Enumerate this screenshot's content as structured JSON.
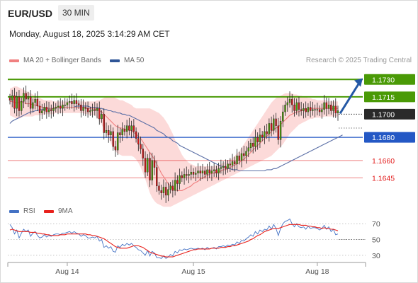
{
  "header": {
    "symbol": "EUR/USD",
    "timeframe": "30 MIN",
    "datetime": "Monday, August 18, 2025 3:14:29 AM CET",
    "credit": "Research © 2025 Trading Central"
  },
  "legend": {
    "ma20": {
      "label": "MA 20 + Bollinger Bands",
      "color": "#f08080"
    },
    "ma50": {
      "label": "MA 50",
      "color": "#2f5597"
    },
    "rsi": {
      "label": "RSI",
      "color": "#4472c4"
    },
    "rsi_ma": {
      "label": "9MA",
      "color": "#e8211c"
    }
  },
  "chart_data": [
    {
      "type": "candlestick",
      "title": "EUR/USD 30 MIN",
      "x_ticks": [
        "Aug 14",
        "Aug 15",
        "Aug 18"
      ],
      "ylim": [
        1.1622,
        1.1743
      ],
      "levels": [
        {
          "value": 1.173,
          "label": "1.1730",
          "kind": "resistance",
          "color": "#4a9a06"
        },
        {
          "value": 1.1715,
          "label": "1.1715",
          "kind": "resistance",
          "color": "#4a9a06"
        },
        {
          "value": 1.17,
          "label": "1.1700",
          "kind": "last",
          "color": "#2a2a2a"
        },
        {
          "value": 1.168,
          "label": "1.1680",
          "kind": "pivot",
          "color": "#2458c5"
        },
        {
          "value": 1.166,
          "label": "1.1660",
          "kind": "support",
          "color": "#e21b1b"
        },
        {
          "value": 1.1645,
          "label": "1.1645",
          "kind": "support",
          "color": "#e21b1b"
        }
      ],
      "close": [
        1.1712,
        1.1716,
        1.1705,
        1.1715,
        1.1703,
        1.1711,
        1.1718,
        1.1713,
        1.1715,
        1.1705,
        1.171,
        1.1713,
        1.1707,
        1.1701,
        1.1703,
        1.1706,
        1.1702,
        1.1704,
        1.1703,
        1.1705,
        1.1706,
        1.1707,
        1.1705,
        1.1708,
        1.1708,
        1.171,
        1.1711,
        1.1709,
        1.1712,
        1.1709,
        1.1708,
        1.1703,
        1.1706,
        1.1705,
        1.1702,
        1.1703,
        1.1704,
        1.1703,
        1.1705,
        1.1696,
        1.17,
        1.1684,
        1.1686,
        1.1682,
        1.1685,
        1.1672,
        1.1669,
        1.1684,
        1.1682,
        1.1687,
        1.1685,
        1.169,
        1.1686,
        1.169,
        1.1685,
        1.1679,
        1.1674,
        1.167,
        1.1662,
        1.165,
        1.1662,
        1.1643,
        1.166,
        1.1654,
        1.1638,
        1.1634,
        1.1632,
        1.1637,
        1.163,
        1.1635,
        1.1638,
        1.1634,
        1.1643,
        1.164,
        1.1647,
        1.1645,
        1.1648,
        1.1647,
        1.1648,
        1.165,
        1.1648,
        1.1649,
        1.1651,
        1.1649,
        1.1651,
        1.1648,
        1.1652,
        1.1649,
        1.1651,
        1.1652,
        1.1649,
        1.1653,
        1.1654,
        1.1655,
        1.1653,
        1.1657,
        1.1656,
        1.1659,
        1.1657,
        1.1664,
        1.166,
        1.1666,
        1.1664,
        1.1668,
        1.1671,
        1.1675,
        1.1672,
        1.168,
        1.1676,
        1.1682,
        1.168,
        1.1685,
        1.1683,
        1.1692,
        1.1686,
        1.1696,
        1.169,
        1.1678,
        1.1694,
        1.1702,
        1.1708,
        1.171,
        1.1713,
        1.1708,
        1.1703,
        1.171,
        1.1704,
        1.1703,
        1.1705,
        1.1702,
        1.1706,
        1.1703,
        1.1704,
        1.1704,
        1.1704,
        1.1702,
        1.1704,
        1.171,
        1.1705,
        1.1708,
        1.1703,
        1.1707,
        1.1701,
        1.1703
      ],
      "ma20": [
        1.1711,
        1.1711,
        1.171,
        1.171,
        1.171,
        1.1711,
        1.171,
        1.1709,
        1.1709,
        1.1709,
        1.1708,
        1.1708,
        1.1707,
        1.1707,
        1.1706,
        1.1706,
        1.1706,
        1.1705,
        1.1705,
        1.1705,
        1.1706,
        1.1706,
        1.1706,
        1.1706,
        1.1706,
        1.1706,
        1.1706,
        1.1706,
        1.1706,
        1.1706,
        1.1706,
        1.1706,
        1.1706,
        1.1705,
        1.1705,
        1.1705,
        1.1705,
        1.1705,
        1.1704,
        1.1703,
        1.1702,
        1.17,
        1.1698,
        1.1696,
        1.1694,
        1.1692,
        1.169,
        1.1689,
        1.1688,
        1.1688,
        1.1687,
        1.1687,
        1.1686,
        1.1686,
        1.1684,
        1.1683,
        1.1681,
        1.1679,
        1.1676,
        1.1673,
        1.167,
        1.1667,
        1.1664,
        1.1661,
        1.1657,
        1.1653,
        1.1649,
        1.1646,
        1.1643,
        1.164,
        1.1638,
        1.1636,
        1.1635,
        1.1634,
        1.1634,
        1.1634,
        1.1635,
        1.1636,
        1.1637,
        1.1638,
        1.164,
        1.1641,
        1.1642,
        1.1644,
        1.1645,
        1.1646,
        1.1647,
        1.1648,
        1.1649,
        1.1649,
        1.165,
        1.165,
        1.1651,
        1.1652,
        1.1652,
        1.1653,
        1.1654,
        1.1655,
        1.1656,
        1.1657,
        1.1658,
        1.166,
        1.1661,
        1.1663,
        1.1665,
        1.1667,
        1.1669,
        1.1671,
        1.1673,
        1.1675,
        1.1677,
        1.1679,
        1.1681,
        1.1683,
        1.1685,
        1.1687,
        1.1688,
        1.1689,
        1.1691,
        1.1693,
        1.1695,
        1.1697,
        1.1699,
        1.17,
        1.1701,
        1.1702,
        1.1702,
        1.1703,
        1.1704,
        1.1704,
        1.1704,
        1.1705,
        1.1705,
        1.1705,
        1.1705,
        1.1705,
        1.1705,
        1.1705,
        1.1705,
        1.1705,
        1.1705,
        1.1705,
        1.1705,
        1.1705
      ],
      "bb_upper": [
        1.1722,
        1.1723,
        1.1724,
        1.1724,
        1.1723,
        1.1722,
        1.1721,
        1.172,
        1.1719,
        1.1718,
        1.1717,
        1.1716,
        1.1715,
        1.1714,
        1.1713,
        1.1712,
        1.1712,
        1.1712,
        1.1712,
        1.1711,
        1.1711,
        1.1711,
        1.1711,
        1.1711,
        1.1711,
        1.1711,
        1.1711,
        1.1711,
        1.1711,
        1.1711,
        1.1711,
        1.1711,
        1.1711,
        1.1711,
        1.1711,
        1.1711,
        1.1711,
        1.1711,
        1.1712,
        1.1712,
        1.1713,
        1.1714,
        1.1715,
        1.1715,
        1.1715,
        1.1715,
        1.1714,
        1.1713,
        1.1712,
        1.1712,
        1.1711,
        1.171,
        1.1709,
        1.1708,
        1.1706,
        1.1705,
        1.1705,
        1.1705,
        1.1705,
        1.1705,
        1.1705,
        1.1705,
        1.1704,
        1.1703,
        1.1702,
        1.1701,
        1.1699,
        1.1697,
        1.1694,
        1.1691,
        1.1687,
        1.1683,
        1.1678,
        1.1673,
        1.1669,
        1.1665,
        1.1662,
        1.166,
        1.1658,
        1.1657,
        1.1656,
        1.1655,
        1.1655,
        1.1655,
        1.1655,
        1.1655,
        1.1655,
        1.1655,
        1.1655,
        1.1655,
        1.1656,
        1.1656,
        1.1657,
        1.1658,
        1.1659,
        1.166,
        1.1661,
        1.1662,
        1.1664,
        1.1666,
        1.1668,
        1.1671,
        1.1674,
        1.1677,
        1.168,
        1.1683,
        1.1686,
        1.1689,
        1.1692,
        1.1695,
        1.1698,
        1.1701,
        1.1704,
        1.1707,
        1.171,
        1.1712,
        1.1714,
        1.1715,
        1.1716,
        1.1717,
        1.1718,
        1.1718,
        1.1718,
        1.1718,
        1.1717,
        1.1717,
        1.1716,
        1.1716,
        1.1715,
        1.1715,
        1.1714,
        1.1714,
        1.1713,
        1.1713,
        1.1712,
        1.1712,
        1.1712,
        1.1712,
        1.1712,
        1.1711,
        1.1711,
        1.1711,
        1.1711,
        1.1711
      ],
      "bb_lower": [
        1.1699,
        1.1698,
        1.1697,
        1.1696,
        1.1696,
        1.1697,
        1.1698,
        1.1698,
        1.1698,
        1.1698,
        1.1698,
        1.1699,
        1.1699,
        1.1699,
        1.1699,
        1.17,
        1.17,
        1.17,
        1.17,
        1.17,
        1.1701,
        1.1701,
        1.1701,
        1.1701,
        1.1701,
        1.1701,
        1.1701,
        1.1701,
        1.1701,
        1.1701,
        1.1701,
        1.1701,
        1.1701,
        1.17,
        1.17,
        1.1699,
        1.1699,
        1.1699,
        1.1697,
        1.1694,
        1.1691,
        1.1687,
        1.1683,
        1.1679,
        1.1675,
        1.1671,
        1.1668,
        1.1666,
        1.1665,
        1.1664,
        1.1664,
        1.1664,
        1.1664,
        1.1664,
        1.1663,
        1.1661,
        1.1658,
        1.1654,
        1.1649,
        1.1644,
        1.1638,
        1.1632,
        1.1628,
        1.1625,
        1.1623,
        1.1622,
        1.1621,
        1.162,
        1.162,
        1.162,
        1.162,
        1.1621,
        1.1622,
        1.1623,
        1.1624,
        1.1625,
        1.1626,
        1.1627,
        1.1628,
        1.1629,
        1.163,
        1.1631,
        1.1632,
        1.1633,
        1.1634,
        1.1635,
        1.1636,
        1.1637,
        1.1638,
        1.1639,
        1.164,
        1.1641,
        1.1642,
        1.1643,
        1.1644,
        1.1645,
        1.1646,
        1.1647,
        1.1648,
        1.1649,
        1.165,
        1.1651,
        1.1652,
        1.1653,
        1.1654,
        1.1655,
        1.1656,
        1.1657,
        1.1658,
        1.1659,
        1.166,
        1.1661,
        1.1662,
        1.1663,
        1.1664,
        1.1666,
        1.1668,
        1.167,
        1.1672,
        1.1674,
        1.1677,
        1.168,
        1.1683,
        1.1685,
        1.1687,
        1.1689,
        1.1691,
        1.1692,
        1.1693,
        1.1694,
        1.1695,
        1.1696,
        1.1696,
        1.1697,
        1.1697,
        1.1697,
        1.1697,
        1.1698,
        1.1698,
        1.1698,
        1.1698,
        1.1698,
        1.1698,
        1.1698
      ],
      "ma50": [
        1.1692,
        1.1694,
        1.1695,
        1.1696,
        1.1697,
        1.1698,
        1.1699,
        1.17,
        1.1701,
        1.1702,
        1.1702,
        1.1703,
        1.1703,
        1.1704,
        1.1704,
        1.1704,
        1.1705,
        1.1705,
        1.1705,
        1.1705,
        1.1706,
        1.1706,
        1.1706,
        1.1706,
        1.1706,
        1.1706,
        1.1706,
        1.1706,
        1.1706,
        1.1707,
        1.1707,
        1.1707,
        1.1707,
        1.1707,
        1.1707,
        1.1706,
        1.1706,
        1.1706,
        1.1706,
        1.1705,
        1.1705,
        1.1704,
        1.1704,
        1.1703,
        1.1703,
        1.1702,
        1.1702,
        1.1701,
        1.1701,
        1.17,
        1.17,
        1.1699,
        1.1699,
        1.1698,
        1.1697,
        1.1696,
        1.1695,
        1.1694,
        1.1693,
        1.1692,
        1.1691,
        1.169,
        1.1689,
        1.1688,
        1.1686,
        1.1685,
        1.1684,
        1.1683,
        1.1681,
        1.168,
        1.1679,
        1.1677,
        1.1676,
        1.1675,
        1.1673,
        1.1672,
        1.1671,
        1.167,
        1.1669,
        1.1668,
        1.1667,
        1.1666,
        1.1665,
        1.1664,
        1.1663,
        1.1662,
        1.1661,
        1.166,
        1.1659,
        1.1658,
        1.1657,
        1.1656,
        1.1655,
        1.1655,
        1.1654,
        1.1653,
        1.1653,
        1.1652,
        1.1652,
        1.1652,
        1.1651,
        1.1651,
        1.1651,
        1.1651,
        1.1651,
        1.1651,
        1.1651,
        1.1651,
        1.1651,
        1.1651,
        1.1651,
        1.1651,
        1.1652,
        1.1652,
        1.1652,
        1.1653,
        1.1653,
        1.1654,
        1.1655,
        1.1656,
        1.1657,
        1.1658,
        1.1659,
        1.166,
        1.1661,
        1.1662,
        1.1663,
        1.1664,
        1.1665,
        1.1666,
        1.1667,
        1.1668,
        1.1669,
        1.167,
        1.1671,
        1.1672,
        1.1673,
        1.1674,
        1.1675,
        1.1676,
        1.1677,
        1.1678,
        1.1679,
        1.168,
        1.1681,
        1.1682
      ]
    },
    {
      "type": "line",
      "title": "RSI",
      "x_ticks": [
        "Aug 14",
        "Aug 15",
        "Aug 18"
      ],
      "ylim": [
        20,
        80
      ],
      "y_ticks": [
        30,
        50,
        70
      ],
      "series": [
        {
          "name": "RSI",
          "color": "#4472c4",
          "values": [
            69,
            65,
            57,
            62,
            52,
            58,
            63,
            60,
            62,
            54,
            58,
            60,
            55,
            52,
            53,
            56,
            53,
            55,
            54,
            56,
            57,
            57,
            56,
            58,
            58,
            59,
            60,
            58,
            60,
            58,
            57,
            54,
            56,
            55,
            52,
            52,
            53,
            52,
            54,
            48,
            50,
            40,
            42,
            39,
            41,
            35,
            34,
            42,
            40,
            44,
            42,
            45,
            43,
            45,
            42,
            40,
            37,
            36,
            33,
            30,
            36,
            29,
            35,
            33,
            27,
            27,
            26,
            29,
            26,
            28,
            31,
            29,
            35,
            33,
            37,
            36,
            38,
            37,
            38,
            39,
            38,
            38,
            39,
            38,
            39,
            37,
            40,
            38,
            39,
            40,
            38,
            41,
            41,
            42,
            41,
            43,
            42,
            44,
            43,
            47,
            45,
            49,
            48,
            51,
            53,
            56,
            54,
            60,
            57,
            62,
            60,
            63,
            62,
            67,
            63,
            69,
            64,
            55,
            64,
            70,
            73,
            74,
            76,
            70,
            66,
            70,
            66,
            65,
            66,
            63,
            67,
            64,
            65,
            65,
            64,
            62,
            64,
            68,
            63,
            66,
            60,
            63,
            56,
            57
          ]
        },
        {
          "name": "9MA",
          "color": "#e8211c",
          "values": [
            62,
            63,
            62,
            61,
            60,
            60,
            60,
            60,
            60,
            59,
            59,
            59,
            58,
            58,
            57,
            57,
            56,
            56,
            55,
            55,
            55,
            55,
            56,
            56,
            56,
            57,
            57,
            57,
            57,
            57,
            57,
            57,
            57,
            57,
            56,
            56,
            55,
            55,
            54,
            53,
            52,
            51,
            49,
            47,
            45,
            43,
            41,
            40,
            39,
            39,
            39,
            39,
            40,
            41,
            42,
            42,
            42,
            41,
            40,
            38,
            36,
            34,
            33,
            32,
            31,
            30,
            29,
            29,
            28,
            28,
            28,
            28,
            29,
            30,
            31,
            32,
            33,
            34,
            35,
            36,
            37,
            37,
            38,
            38,
            38,
            38,
            38,
            38,
            39,
            39,
            39,
            39,
            40,
            40,
            40,
            41,
            41,
            42,
            42,
            43,
            44,
            45,
            46,
            47,
            48,
            50,
            51,
            53,
            55,
            56,
            58,
            60,
            61,
            62,
            63,
            64,
            64,
            64,
            65,
            66,
            67,
            68,
            69,
            69,
            69,
            69,
            69,
            68,
            68,
            68,
            67,
            67,
            66,
            66,
            65,
            65,
            64,
            65,
            64,
            64,
            63,
            63,
            62,
            61
          ]
        }
      ]
    }
  ]
}
